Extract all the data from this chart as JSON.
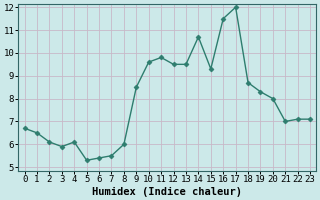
{
  "x": [
    0,
    1,
    2,
    3,
    4,
    5,
    6,
    7,
    8,
    9,
    10,
    11,
    12,
    13,
    14,
    15,
    16,
    17,
    18,
    19,
    20,
    21,
    22,
    23
  ],
  "y": [
    6.7,
    6.5,
    6.1,
    5.9,
    6.1,
    5.3,
    5.4,
    5.5,
    6.0,
    8.5,
    9.6,
    9.8,
    9.5,
    9.5,
    10.7,
    9.3,
    11.5,
    12.0,
    8.7,
    8.3,
    8.0,
    7.0,
    7.1,
    7.1
  ],
  "line_color": "#2e7d6e",
  "marker": "D",
  "marker_size": 2.5,
  "bg_color": "#cce9e9",
  "grid_color": "#c8b8c8",
  "xlabel": "Humidex (Indice chaleur)",
  "ylim": [
    5,
    12
  ],
  "xlim": [
    -0.5,
    23.5
  ],
  "yticks": [
    5,
    6,
    7,
    8,
    9,
    10,
    11,
    12
  ],
  "xticks": [
    0,
    1,
    2,
    3,
    4,
    5,
    6,
    7,
    8,
    9,
    10,
    11,
    12,
    13,
    14,
    15,
    16,
    17,
    18,
    19,
    20,
    21,
    22,
    23
  ],
  "xlabel_fontsize": 7.5,
  "tick_fontsize": 6.5,
  "spine_color": "#336666",
  "linewidth": 1.0
}
